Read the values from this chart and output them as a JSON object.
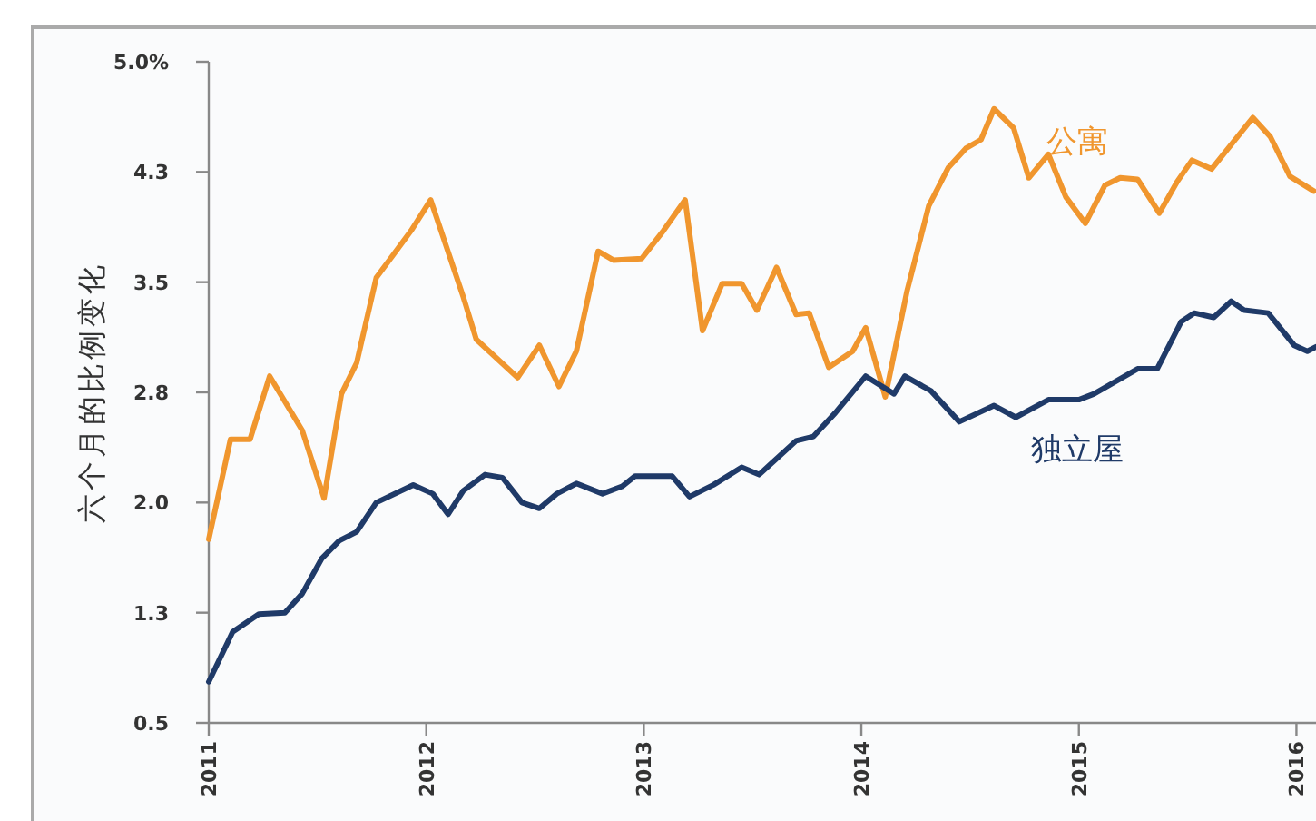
{
  "chart_data": {
    "type": "line",
    "ylabel": "六个月的比例变化",
    "xlim": [
      2011,
      2016.09
    ],
    "xticks": [
      2011,
      2012,
      2013,
      2014,
      2015,
      2016
    ],
    "ylim": [
      0.5,
      5.0
    ],
    "yticks": [
      {
        "value": 0.5,
        "label": "0.5"
      },
      {
        "value": 1.25,
        "label": "1.3"
      },
      {
        "value": 2,
        "label": "2.0"
      },
      {
        "value": 2.75,
        "label": "2.8"
      },
      {
        "value": 3.5,
        "label": "3.5"
      },
      {
        "value": 4.25,
        "label": "4.3"
      },
      {
        "value": 5,
        "label": "5.0%"
      }
    ],
    "grid": false,
    "legend": false,
    "marker": "none",
    "line_style": "solid",
    "series": [
      {
        "name": "公寓",
        "color": "#f0962e",
        "x": [
          2011.0,
          2011.1,
          2011.19,
          2011.28,
          2011.43,
          2011.53,
          2011.61,
          2011.68,
          2011.77,
          2011.85,
          2011.93,
          2012.02,
          2012.17,
          2012.23,
          2012.42,
          2012.52,
          2012.61,
          2012.69,
          2012.79,
          2012.86,
          2012.99,
          2013.09,
          2013.19,
          2013.27,
          2013.36,
          2013.45,
          2013.52,
          2013.61,
          2013.7,
          2013.76,
          2013.85,
          2013.96,
          2014.02,
          2014.11,
          2014.21,
          2014.31,
          2014.4,
          2014.48,
          2014.55,
          2014.61,
          2014.7,
          2014.77,
          2014.86,
          2014.94,
          2015.03,
          2015.12,
          2015.19,
          2015.27,
          2015.37,
          2015.45,
          2015.52,
          2015.61,
          2015.8,
          2015.88,
          2015.97,
          2016.08
        ],
        "values": [
          1.75,
          2.43,
          2.43,
          2.86,
          2.49,
          2.03,
          2.74,
          2.95,
          3.53,
          3.69,
          3.85,
          4.06,
          3.4,
          3.11,
          2.85,
          3.07,
          2.79,
          3.03,
          3.71,
          3.65,
          3.66,
          3.85,
          4.06,
          3.17,
          3.49,
          3.49,
          3.31,
          3.6,
          3.28,
          3.29,
          2.92,
          3.03,
          3.19,
          2.72,
          3.44,
          4.02,
          4.28,
          4.41,
          4.47,
          4.68,
          4.55,
          4.21,
          4.37,
          4.08,
          3.9,
          4.16,
          4.21,
          4.2,
          3.97,
          4.18,
          4.33,
          4.27,
          4.62,
          4.49,
          4.22,
          4.12
        ]
      },
      {
        "name": "独立屋",
        "color": "#1f3a68",
        "x": [
          2011.0,
          2011.11,
          2011.23,
          2011.35,
          2011.43,
          2011.52,
          2011.6,
          2011.68,
          2011.77,
          2011.94,
          2012.03,
          2012.1,
          2012.17,
          2012.27,
          2012.35,
          2012.44,
          2012.52,
          2012.6,
          2012.69,
          2012.81,
          2012.9,
          2012.96,
          2013.05,
          2013.13,
          2013.21,
          2013.32,
          2013.45,
          2013.53,
          2013.7,
          2013.78,
          2013.88,
          2014.02,
          2014.15,
          2014.2,
          2014.32,
          2014.45,
          2014.61,
          2014.71,
          2014.86,
          2015.0,
          2015.07,
          2015.27,
          2015.36,
          2015.47,
          2015.53,
          2015.62,
          2015.7,
          2015.76,
          2015.87,
          2015.99,
          2016.05,
          2016.09
        ],
        "values": [
          0.78,
          1.12,
          1.24,
          1.25,
          1.38,
          1.62,
          1.74,
          1.8,
          2.0,
          2.12,
          2.06,
          1.92,
          2.08,
          2.19,
          2.17,
          2.0,
          1.96,
          2.06,
          2.13,
          2.06,
          2.11,
          2.18,
          2.18,
          2.18,
          2.04,
          2.12,
          2.24,
          2.19,
          2.42,
          2.45,
          2.61,
          2.86,
          2.74,
          2.86,
          2.76,
          2.55,
          2.66,
          2.58,
          2.7,
          2.7,
          2.74,
          2.91,
          2.91,
          3.23,
          3.29,
          3.26,
          3.37,
          3.31,
          3.29,
          3.07,
          3.03,
          3.06
        ]
      }
    ]
  }
}
